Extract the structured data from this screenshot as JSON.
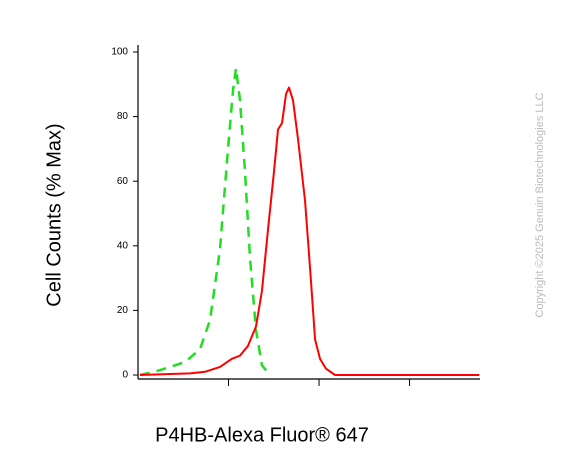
{
  "chart_data": {
    "type": "line",
    "xlabel": "P4HB-Alexa Fluor® 647",
    "ylabel": "Cell Counts (% Max)",
    "watermark": "Copyright ©2025 Genuin Biotechnologies LLC",
    "xscale": "log",
    "xlim": [
      1,
      6000
    ],
    "xticks": [
      10,
      100,
      1000
    ],
    "ylim": [
      0,
      100
    ],
    "yticks": [
      0,
      20,
      40,
      60,
      80,
      100
    ],
    "series": [
      {
        "color": "#22dd22",
        "dash": true,
        "x": [
          1.05,
          1.75,
          3.31,
          4.84,
          6.25,
          8.05,
          9.87,
          11.2,
          12.1,
          13.4,
          15.2,
          17.3,
          20.1,
          23.4,
          28.7
        ],
        "values": [
          0,
          1.5,
          4,
          8,
          17,
          39,
          70,
          88,
          95,
          85,
          63,
          36,
          14,
          3,
          0
        ]
      },
      {
        "color": "#ff0000",
        "dash": false,
        "x": [
          1.05,
          3.76,
          5.5,
          8.05,
          10.9,
          13.4,
          16.4,
          20.1,
          23.4,
          27.3,
          31.8,
          35.2,
          39.0,
          43.2,
          46.6,
          51.6,
          58.6,
          70.0,
          79.6,
          90.4,
          102.6,
          119,
          150,
          220,
          5900
        ],
        "values": [
          0,
          0.5,
          1,
          2.5,
          5,
          6,
          9,
          15,
          26,
          45,
          63,
          76,
          78,
          87,
          89,
          85,
          73,
          54,
          33,
          11,
          5,
          2,
          0,
          0,
          0
        ]
      }
    ]
  }
}
